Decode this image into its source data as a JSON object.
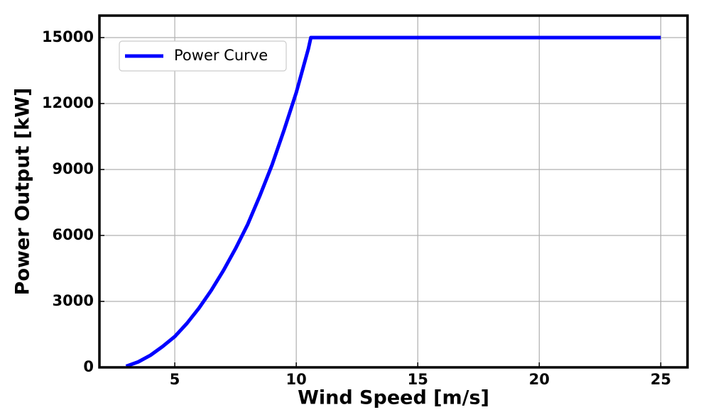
{
  "chart_data": {
    "type": "line",
    "x_label": "Wind Speed [m/s]",
    "y_label": "Power Output [kW]",
    "x": [
      3,
      3.5,
      4,
      4.5,
      5,
      5.5,
      6,
      6.5,
      7,
      7.5,
      8,
      8.5,
      9,
      9.5,
      10,
      10.5,
      10.6,
      11,
      12,
      13,
      14,
      15,
      16,
      17,
      18,
      19,
      20,
      21,
      22,
      23,
      24,
      25
    ],
    "series": [
      {
        "name": "Power Curve",
        "color": "#0000ff",
        "values": [
          50,
          250,
          550,
          950,
          1400,
          2000,
          2700,
          3500,
          4400,
          5400,
          6500,
          7800,
          9200,
          10800,
          12500,
          14500,
          15000,
          15000,
          15000,
          15000,
          15000,
          15000,
          15000,
          15000,
          15000,
          15000,
          15000,
          15000,
          15000,
          15000,
          15000,
          15000
        ]
      }
    ],
    "xlim": [
      1.9,
      26.1
    ],
    "ylim": [
      0,
      16000
    ],
    "xticks": [
      5,
      10,
      15,
      20,
      25
    ],
    "yticks": [
      0,
      3000,
      6000,
      9000,
      12000,
      15000
    ],
    "grid": true,
    "legend": "upper left"
  }
}
